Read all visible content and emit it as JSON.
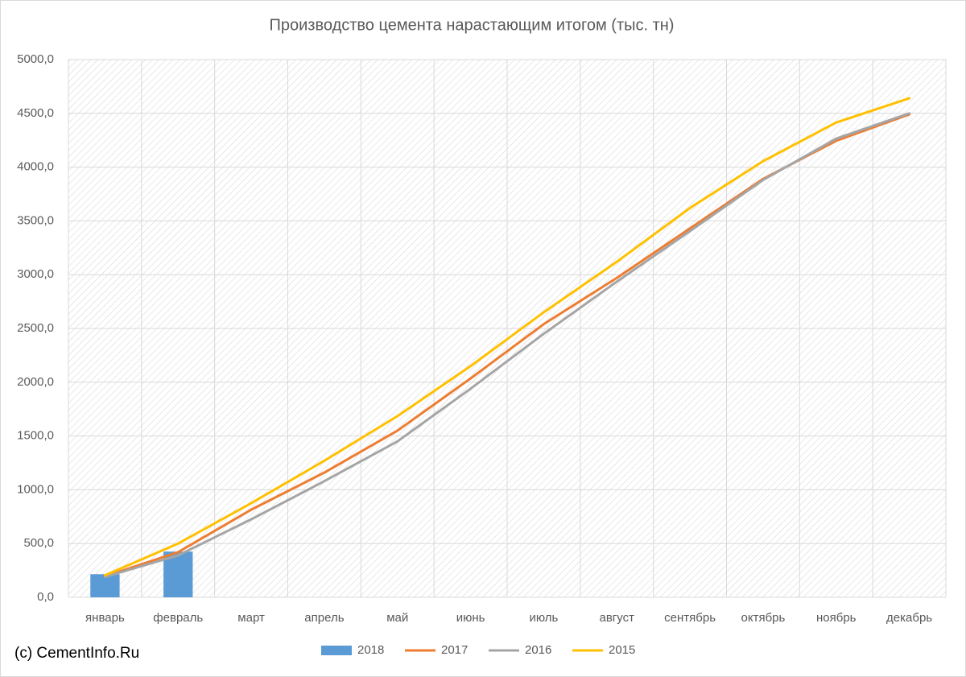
{
  "chart_data": {
    "type": "combo",
    "title": "Производство цемента нарастающим итогом (тыс. тн)",
    "annotation": "(c) CementInfo.Ru",
    "categories": [
      "январь",
      "февраль",
      "март",
      "апрель",
      "май",
      "июнь",
      "июль",
      "август",
      "сентябрь",
      "октябрь",
      "ноябрь",
      "декабрь"
    ],
    "series": [
      {
        "name": "2018",
        "type": "bar",
        "color": "#5b9bd5",
        "values": [
          215,
          425,
          null,
          null,
          null,
          null,
          null,
          null,
          null,
          null,
          null,
          null
        ]
      },
      {
        "name": "2017",
        "type": "line",
        "color": "#ed7d31",
        "values": [
          195,
          420,
          815,
          1160,
          1550,
          2035,
          2540,
          2970,
          3430,
          3890,
          4245,
          4490
        ]
      },
      {
        "name": "2016",
        "type": "line",
        "color": "#a5a5a5",
        "values": [
          190,
          390,
          725,
          1080,
          1450,
          1940,
          2450,
          2935,
          3405,
          3880,
          4265,
          4500
        ]
      },
      {
        "name": "2015",
        "type": "line",
        "color": "#ffc000",
        "values": [
          205,
          500,
          875,
          1270,
          1685,
          2150,
          2650,
          3120,
          3620,
          4055,
          4415,
          4640
        ]
      }
    ],
    "ylim": [
      0,
      5000
    ],
    "yticks": [
      {
        "value": 0,
        "label": "0,0"
      },
      {
        "value": 500,
        "label": "500,0"
      },
      {
        "value": 1000,
        "label": "1000,0"
      },
      {
        "value": 1500,
        "label": "1500,0"
      },
      {
        "value": 2000,
        "label": "2000,0"
      },
      {
        "value": 2500,
        "label": "2500,0"
      },
      {
        "value": 3000,
        "label": "3000,0"
      },
      {
        "value": 3500,
        "label": "3500,0"
      },
      {
        "value": 4000,
        "label": "4000,0"
      },
      {
        "value": 4500,
        "label": "4500,0"
      },
      {
        "value": 5000,
        "label": "5000,0"
      }
    ],
    "grid": true,
    "legend": "bottom"
  }
}
